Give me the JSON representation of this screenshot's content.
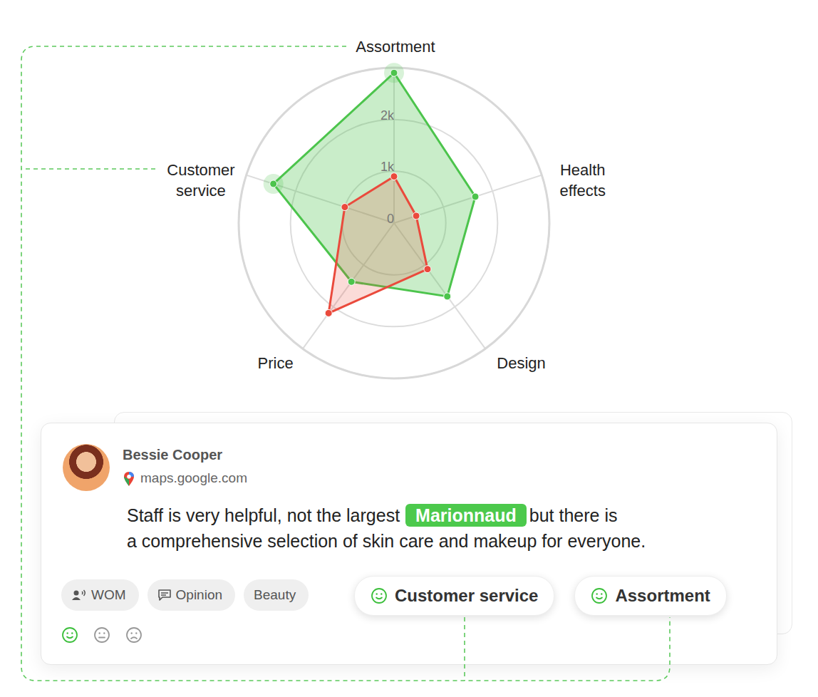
{
  "chart_data": {
    "type": "radar",
    "categories": [
      "Assortment",
      "Health effects",
      "Design",
      "Price",
      "Customer service"
    ],
    "series": [
      {
        "color": "#4cc44c",
        "values": [
          2900,
          1650,
          1750,
          1400,
          2450
        ]
      },
      {
        "color": "#ea4a3c",
        "values": [
          900,
          450,
          1100,
          2150,
          1000
        ]
      }
    ],
    "ylim": [
      0,
      3000
    ],
    "yticks": [
      0,
      {
        "value": 1000,
        "label": "1k"
      },
      {
        "value": 2000,
        "label": "2k"
      }
    ],
    "grid": true
  },
  "review": {
    "author": "Bessie Cooper",
    "source": "maps.google.com",
    "text": {
      "before": "Staff is very helpful, not the largest",
      "highlight": "Marionnaud",
      "after": "but there is",
      "line2": "a comprehensive selection of skin care and makeup for everyone."
    },
    "tags": [
      "WOM",
      "Opinion",
      "Beauty"
    ],
    "topics": [
      "Customer service",
      "Assortment"
    ]
  }
}
